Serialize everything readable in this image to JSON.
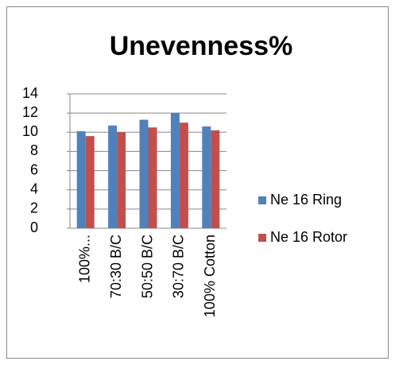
{
  "chart_data": {
    "type": "bar",
    "title": "Unevenness%",
    "categories": [
      "100%...",
      "70:30 B/C",
      "50:50 B/C",
      "30:70 B/C",
      "100% Cotton"
    ],
    "series": [
      {
        "name": "Ne 16 Ring",
        "color": "#4f81bd",
        "values": [
          10.1,
          10.7,
          11.3,
          12.0,
          10.6
        ]
      },
      {
        "name": "Ne 16 Rotor",
        "color": "#c0504d",
        "values": [
          9.6,
          10.0,
          10.5,
          11.0,
          10.2
        ]
      }
    ],
    "ylim": [
      0,
      14
    ],
    "yticks": [
      0,
      2,
      4,
      6,
      8,
      10,
      12,
      14
    ],
    "grid": true,
    "legend": "right"
  }
}
